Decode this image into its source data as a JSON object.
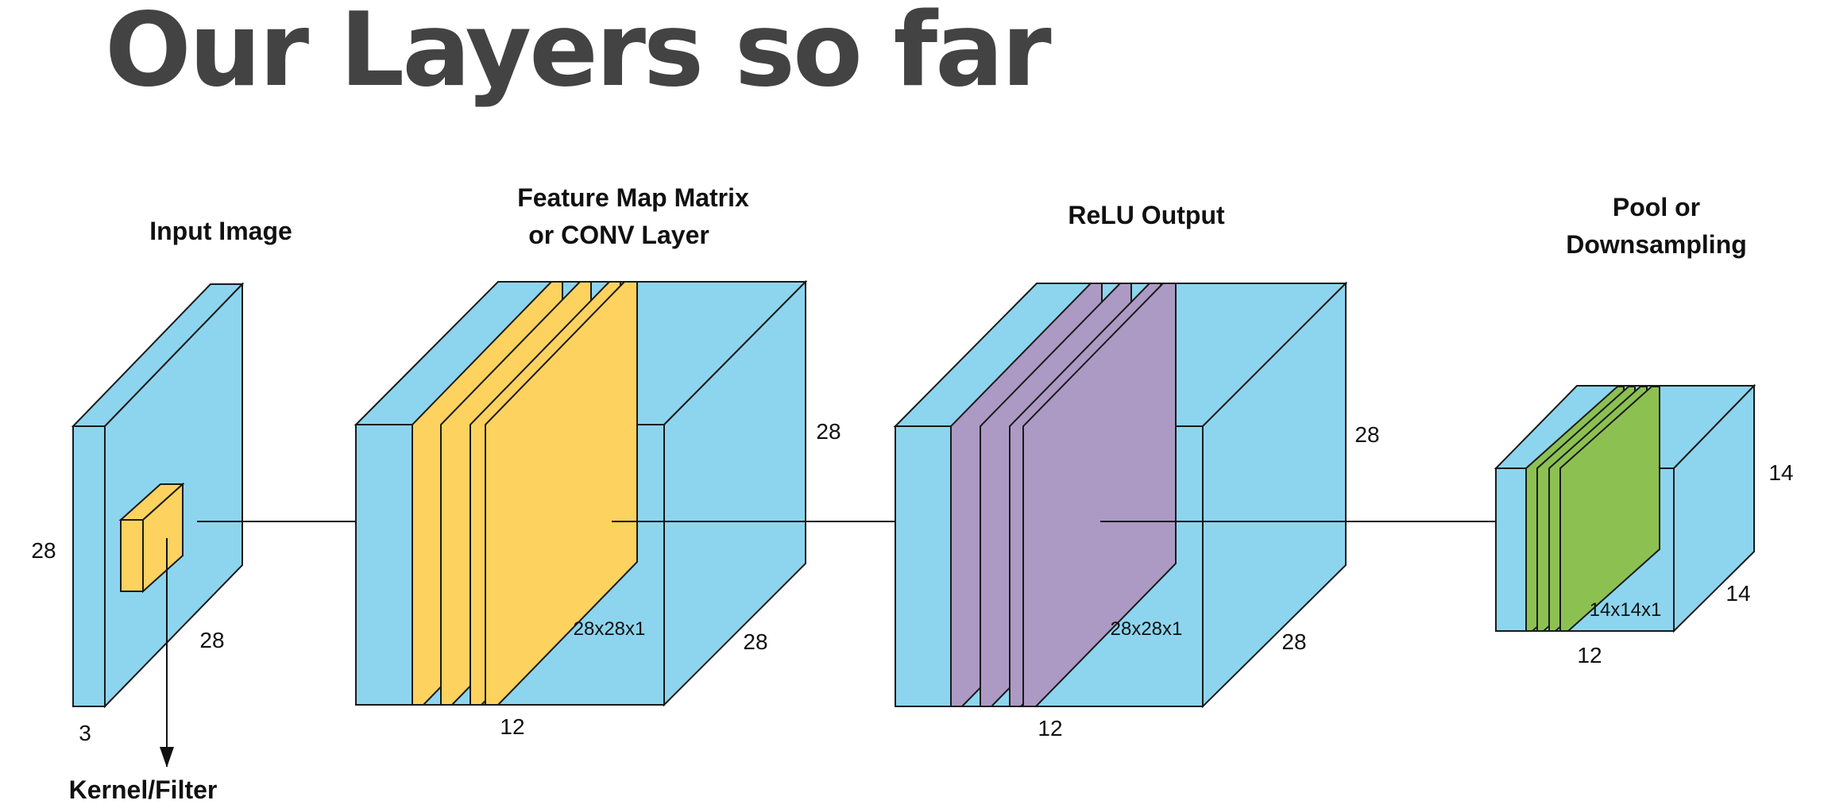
{
  "title": "Our Layers so far",
  "colors": {
    "volume": "#8dd5ee",
    "feature_map": "#fdd25f",
    "relu": "#ad9ac4",
    "pool": "#8cc152",
    "stroke": "#1a1a1a",
    "title_text": "#434343"
  },
  "input": {
    "label": "Input Image",
    "dim_height": "28",
    "dim_depth": "28",
    "dim_width": "3",
    "kernel_label": "Kernel/Filter"
  },
  "conv": {
    "label_line1": "Feature Map Matrix",
    "label_line2": "or CONV Layer",
    "dim_height": "28",
    "dim_depth": "28",
    "dim_width": "12",
    "map_size": "28x28x1"
  },
  "relu": {
    "label": "ReLU Output",
    "dim_height": "28",
    "dim_depth": "28",
    "dim_width": "12",
    "map_size": "28x28x1"
  },
  "pool": {
    "label_line1": "Pool or",
    "label_line2": "Downsampling",
    "dim_height": "14",
    "dim_depth": "14",
    "dim_width": "12",
    "map_size": "14x14x1"
  }
}
